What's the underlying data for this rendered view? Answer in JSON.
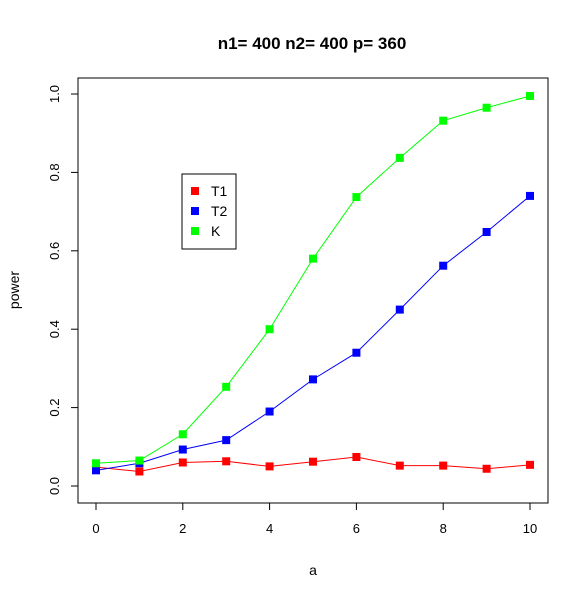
{
  "chart_data": {
    "type": "line",
    "title": "n1= 400 n2= 400 p= 360",
    "xlabel": "a",
    "ylabel": "power",
    "xlim": [
      0,
      10
    ],
    "ylim": [
      0,
      1
    ],
    "xticks": [
      "0",
      "2",
      "4",
      "6",
      "8",
      "10"
    ],
    "yticks": [
      "0.0",
      "0.2",
      "0.4",
      "0.6",
      "0.8",
      "1.0"
    ],
    "grid": false,
    "legend_position": "upper-left",
    "x": [
      0,
      1,
      2,
      3,
      4,
      5,
      6,
      7,
      8,
      9,
      10
    ],
    "series": [
      {
        "name": "T1",
        "color": "#ff0000",
        "values": [
          0.048,
          0.037,
          0.06,
          0.063,
          0.05,
          0.062,
          0.074,
          0.052,
          0.052,
          0.044,
          0.054
        ]
      },
      {
        "name": "T2",
        "color": "#0000ff",
        "values": [
          0.04,
          0.058,
          0.093,
          0.117,
          0.19,
          0.272,
          0.34,
          0.45,
          0.562,
          0.648,
          0.74
        ]
      },
      {
        "name": "K",
        "color": "#00ff00",
        "values": [
          0.058,
          0.065,
          0.132,
          0.253,
          0.4,
          0.58,
          0.737,
          0.837,
          0.932,
          0.965,
          0.995
        ]
      }
    ]
  }
}
